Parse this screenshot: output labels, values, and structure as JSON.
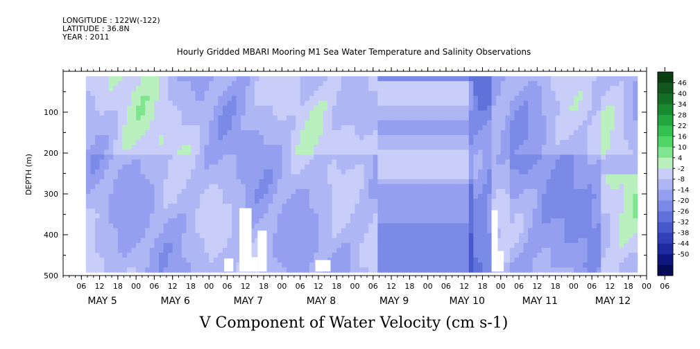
{
  "header": {
    "longitude": "LONGITUDE : 122W(-122)",
    "latitude": "LATITUDE : 36.8N",
    "year": "YEAR : 2011"
  },
  "chart_data": {
    "type": "heatmap",
    "title": "Hourly Gridded MBARI Mooring M1 Sea Water Temperature and Salinity Observations",
    "xlabel": "V Component of Water Velocity (cm s-1)",
    "ylabel": "DEPTH (m)",
    "x_unit": "hours since MAY 5 00:00",
    "xlim": [
      -6,
      186
    ],
    "ylim": [
      500,
      0
    ],
    "y_ticks": [
      100,
      200,
      300,
      400,
      500
    ],
    "x_hour_ticks": [
      "06",
      "12",
      "18",
      "00",
      "06",
      "12",
      "18",
      "00",
      "06",
      "12",
      "18",
      "00",
      "06",
      "12",
      "18",
      "00",
      "06",
      "12",
      "18",
      "00",
      "06",
      "12",
      "18",
      "00",
      "06",
      "12",
      "18",
      "00",
      "06",
      "12",
      "18",
      "00",
      "06"
    ],
    "x_day_labels": [
      {
        "label": "MAY  5",
        "hour": 6
      },
      {
        "label": "MAY  6",
        "hour": 30
      },
      {
        "label": "MAY  7",
        "hour": 54
      },
      {
        "label": "MAY  8",
        "hour": 78
      },
      {
        "label": "MAY  9",
        "hour": 102
      },
      {
        "label": "MAY 10",
        "hour": 126
      },
      {
        "label": "MAY 11",
        "hour": 150
      },
      {
        "label": "MAY 12",
        "hour": 174
      }
    ],
    "data_extent": {
      "x": [
        1.5,
        182
      ],
      "y": [
        12,
        490
      ]
    },
    "colorbar": {
      "labels": [
        "46",
        "40",
        "34",
        "28",
        "22",
        "16",
        "10",
        "4",
        "-2",
        "-8",
        "-14",
        "-20",
        "-26",
        "-32",
        "-38",
        "-44",
        "-50"
      ],
      "colors": [
        "#0b3d12",
        "#11561c",
        "#156e26",
        "#1a8a30",
        "#22a63d",
        "#33c050",
        "#50d466",
        "#7fe58f",
        "#b9f0bd",
        "#c9cef8",
        "#aeb6f4",
        "#94a0ef",
        "#7a8ae6",
        "#5f72da",
        "#4659cc",
        "#2f40b8",
        "#1c2aa0",
        "#0d177f",
        "#050a55"
      ]
    },
    "gaps": [
      {
        "x": [
          52,
          56
        ],
        "y_from": 335
      },
      {
        "x": [
          56,
          58
        ],
        "y_from": 455
      },
      {
        "x": [
          58,
          61
        ],
        "y_from": 390
      },
      {
        "x": [
          47,
          50
        ],
        "y_from": 458
      },
      {
        "x": [
          77,
          82
        ],
        "y_from": 462
      },
      {
        "x": [
          135,
          137
        ],
        "y_from": 340
      },
      {
        "x": [
          137,
          139
        ],
        "y_from": 440
      }
    ]
  }
}
